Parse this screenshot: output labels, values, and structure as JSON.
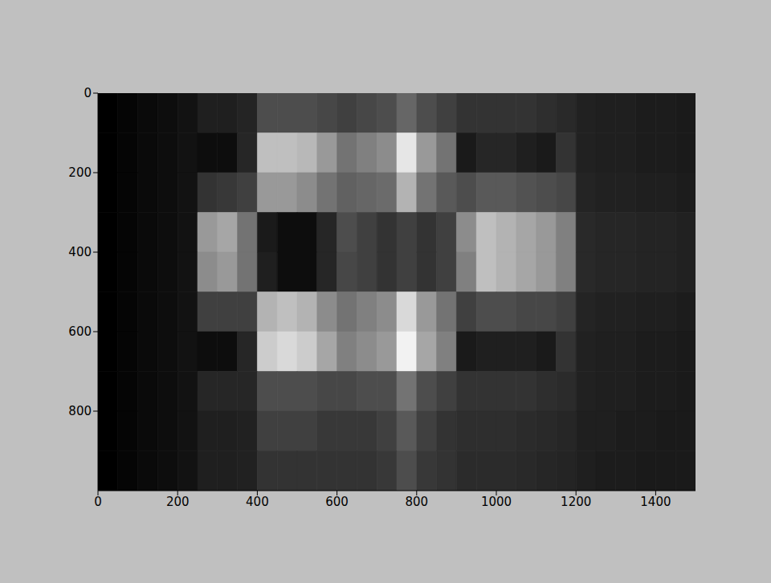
{
  "chart_data": {
    "type": "heatmap",
    "color": "gray",
    "xlim": [
      0,
      1500
    ],
    "ylim": [
      1000,
      0
    ],
    "xticks": [
      0,
      200,
      400,
      600,
      800,
      1000,
      1200,
      1400
    ],
    "yticks": [
      0,
      200,
      400,
      600,
      800
    ],
    "x_bins": [
      0,
      50,
      100,
      150,
      200,
      250,
      300,
      350,
      400,
      450,
      500,
      550,
      600,
      650,
      700,
      750,
      800,
      850,
      900,
      950,
      1000,
      1050,
      1100,
      1150,
      1200,
      1250,
      1300,
      1350,
      1400,
      1450,
      1500
    ],
    "y_bins": [
      0,
      100,
      200,
      300,
      400,
      500,
      600,
      700,
      800,
      900,
      1000
    ],
    "cells": [
      [
        0,
        0.02,
        0.04,
        0.05,
        0.07,
        0.12,
        0.12,
        0.14,
        0.3,
        0.3,
        0.3,
        0.28,
        0.25,
        0.28,
        0.3,
        0.4,
        0.3,
        0.25,
        0.2,
        0.2,
        0.2,
        0.2,
        0.18,
        0.16,
        0.13,
        0.12,
        0.12,
        0.11,
        0.11,
        0.1
      ],
      [
        0,
        0.02,
        0.04,
        0.05,
        0.07,
        0.05,
        0.05,
        0.15,
        0.75,
        0.75,
        0.72,
        0.6,
        0.45,
        0.5,
        0.55,
        0.9,
        0.6,
        0.45,
        0.1,
        0.15,
        0.15,
        0.12,
        0.1,
        0.2,
        0.13,
        0.12,
        0.12,
        0.11,
        0.11,
        0.1
      ],
      [
        0,
        0.02,
        0.04,
        0.05,
        0.07,
        0.2,
        0.22,
        0.25,
        0.6,
        0.6,
        0.55,
        0.45,
        0.38,
        0.4,
        0.42,
        0.7,
        0.45,
        0.35,
        0.3,
        0.35,
        0.35,
        0.32,
        0.3,
        0.28,
        0.14,
        0.13,
        0.13,
        0.12,
        0.12,
        0.11
      ],
      [
        0,
        0.02,
        0.04,
        0.05,
        0.07,
        0.6,
        0.65,
        0.45,
        0.1,
        0.05,
        0.05,
        0.15,
        0.3,
        0.25,
        0.2,
        0.25,
        0.2,
        0.25,
        0.55,
        0.75,
        0.7,
        0.65,
        0.6,
        0.5,
        0.16,
        0.15,
        0.15,
        0.14,
        0.14,
        0.13
      ],
      [
        0,
        0.02,
        0.04,
        0.05,
        0.07,
        0.55,
        0.6,
        0.45,
        0.12,
        0.05,
        0.05,
        0.15,
        0.28,
        0.25,
        0.2,
        0.25,
        0.2,
        0.25,
        0.5,
        0.75,
        0.7,
        0.65,
        0.6,
        0.5,
        0.16,
        0.15,
        0.15,
        0.14,
        0.14,
        0.13
      ],
      [
        0,
        0.02,
        0.04,
        0.05,
        0.07,
        0.25,
        0.25,
        0.25,
        0.7,
        0.75,
        0.7,
        0.55,
        0.45,
        0.5,
        0.55,
        0.85,
        0.6,
        0.45,
        0.25,
        0.3,
        0.3,
        0.28,
        0.28,
        0.25,
        0.14,
        0.13,
        0.13,
        0.12,
        0.12,
        0.11
      ],
      [
        0,
        0.02,
        0.04,
        0.05,
        0.07,
        0.05,
        0.05,
        0.15,
        0.8,
        0.85,
        0.8,
        0.65,
        0.5,
        0.55,
        0.6,
        0.95,
        0.65,
        0.5,
        0.1,
        0.12,
        0.12,
        0.12,
        0.1,
        0.2,
        0.13,
        0.12,
        0.12,
        0.11,
        0.11,
        0.1
      ],
      [
        0,
        0.02,
        0.04,
        0.05,
        0.07,
        0.15,
        0.15,
        0.15,
        0.3,
        0.3,
        0.3,
        0.28,
        0.28,
        0.3,
        0.3,
        0.45,
        0.3,
        0.25,
        0.2,
        0.2,
        0.2,
        0.2,
        0.18,
        0.17,
        0.13,
        0.12,
        0.12,
        0.11,
        0.11,
        0.1
      ],
      [
        0,
        0.02,
        0.04,
        0.05,
        0.07,
        0.12,
        0.12,
        0.13,
        0.25,
        0.25,
        0.25,
        0.22,
        0.22,
        0.22,
        0.25,
        0.35,
        0.25,
        0.2,
        0.18,
        0.18,
        0.18,
        0.17,
        0.16,
        0.15,
        0.12,
        0.12,
        0.11,
        0.11,
        0.1,
        0.1
      ],
      [
        0,
        0.02,
        0.04,
        0.05,
        0.07,
        0.12,
        0.12,
        0.13,
        0.2,
        0.2,
        0.2,
        0.2,
        0.2,
        0.2,
        0.22,
        0.3,
        0.22,
        0.2,
        0.17,
        0.17,
        0.17,
        0.16,
        0.15,
        0.14,
        0.12,
        0.11,
        0.11,
        0.1,
        0.1,
        0.1
      ]
    ]
  }
}
